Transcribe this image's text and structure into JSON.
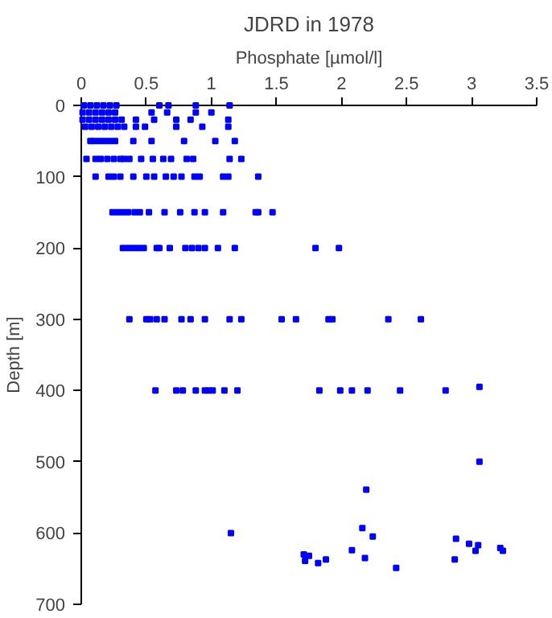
{
  "chart_data": {
    "type": "scatter",
    "title": "JDRD in 1978",
    "xlabel": "Phosphate [µmol/l]",
    "ylabel": "Depth [m]",
    "xlim": [
      0,
      3.5
    ],
    "xticks": [
      0,
      0.5,
      1,
      1.5,
      2,
      2.5,
      3,
      3.5
    ],
    "ylim": [
      700,
      0
    ],
    "yticks": [
      0,
      100,
      200,
      300,
      400,
      500,
      600,
      700
    ],
    "grid": false,
    "marker": "square",
    "series": [
      {
        "color": "#0000ff",
        "x": [
          0.02,
          0.07,
          0.12,
          0.17,
          0.22,
          0.27,
          0.6,
          0.67,
          0.88,
          1.14,
          0.01,
          0.06,
          0.11,
          0.16,
          0.21,
          0.26,
          0.54,
          0.66,
          0.88,
          1.0,
          0.01,
          0.06,
          0.11,
          0.16,
          0.21,
          0.26,
          0.31,
          0.42,
          0.56,
          0.73,
          0.84,
          1.13,
          0.03,
          0.08,
          0.13,
          0.18,
          0.23,
          0.28,
          0.33,
          0.42,
          0.49,
          0.73,
          0.93,
          1.13,
          0.07,
          0.1,
          0.14,
          0.18,
          0.22,
          0.26,
          0.4,
          0.54,
          0.79,
          1.03,
          1.18,
          0.04,
          0.11,
          0.15,
          0.2,
          0.25,
          0.3,
          0.33,
          0.37,
          0.46,
          0.55,
          0.63,
          0.69,
          0.81,
          0.86,
          1.14,
          1.23,
          0.11,
          0.21,
          0.25,
          0.3,
          0.4,
          0.5,
          0.56,
          0.65,
          0.71,
          0.77,
          0.87,
          0.91,
          1.09,
          1.13,
          1.36,
          0.24,
          0.28,
          0.32,
          0.36,
          0.41,
          0.45,
          0.52,
          0.64,
          0.76,
          0.87,
          0.95,
          1.09,
          1.34,
          1.36,
          1.47,
          0.32,
          0.36,
          0.4,
          0.44,
          0.48,
          0.58,
          0.6,
          0.68,
          0.8,
          0.85,
          0.9,
          0.95,
          1.05,
          1.18,
          1.8,
          1.98,
          0.37,
          0.5,
          0.53,
          0.58,
          0.64,
          0.77,
          0.84,
          0.95,
          1.14,
          1.23,
          1.54,
          1.65,
          1.9,
          1.93,
          2.36,
          2.61,
          0.57,
          0.73,
          0.78,
          0.88,
          0.95,
          0.98,
          1.01,
          1.1,
          1.2,
          1.83,
          1.99,
          2.08,
          2.2,
          2.45,
          2.8,
          3.06,
          3.06,
          1.15,
          2.19,
          2.16,
          2.24,
          1.71,
          1.75,
          1.72,
          1.82,
          1.88,
          2.08,
          2.18,
          2.42,
          2.88,
          2.98,
          3.05,
          3.03,
          2.87,
          3.22,
          3.24
        ],
        "values": [
          0,
          0,
          0,
          0,
          0,
          0,
          0,
          0,
          0,
          0,
          10,
          10,
          10,
          10,
          10,
          10,
          10,
          10,
          10,
          10,
          20,
          20,
          20,
          20,
          20,
          20,
          20,
          20,
          20,
          20,
          20,
          20,
          30,
          30,
          30,
          30,
          30,
          30,
          30,
          30,
          30,
          30,
          30,
          30,
          50,
          50,
          50,
          50,
          50,
          50,
          50,
          50,
          50,
          50,
          50,
          75,
          75,
          75,
          75,
          75,
          75,
          75,
          75,
          75,
          75,
          75,
          75,
          75,
          75,
          75,
          75,
          100,
          100,
          100,
          100,
          100,
          100,
          100,
          100,
          100,
          100,
          100,
          100,
          100,
          100,
          100,
          150,
          150,
          150,
          150,
          150,
          150,
          150,
          150,
          150,
          150,
          150,
          150,
          150,
          150,
          150,
          200,
          200,
          200,
          200,
          200,
          200,
          200,
          200,
          200,
          200,
          200,
          200,
          200,
          200,
          200,
          200,
          300,
          300,
          300,
          300,
          300,
          300,
          300,
          300,
          300,
          300,
          300,
          300,
          300,
          300,
          300,
          300,
          400,
          400,
          400,
          400,
          400,
          400,
          400,
          400,
          400,
          400,
          400,
          400,
          400,
          400,
          400,
          395,
          500,
          600,
          539,
          593,
          605,
          630,
          632,
          639,
          642,
          637,
          624,
          635,
          649,
          608,
          615,
          617,
          625,
          637,
          621,
          625
        ]
      }
    ]
  }
}
